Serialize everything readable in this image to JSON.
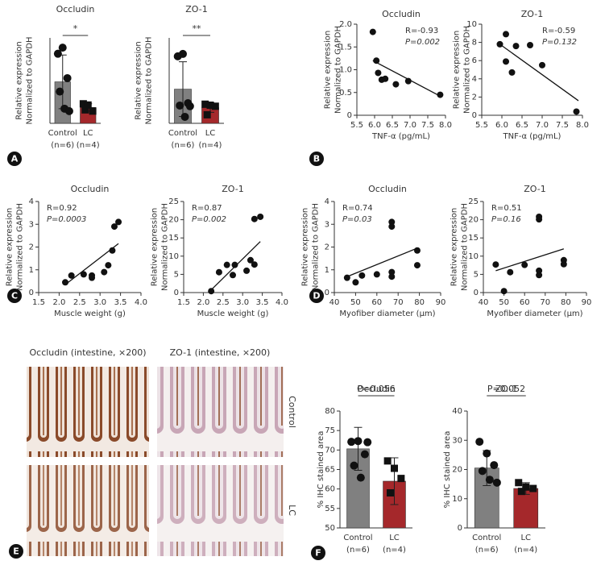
{
  "chart_data": [
    {
      "type": "bar",
      "title": "Occludin",
      "ylabel": [
        "Relative expression",
        "Normalized to GAPDH"
      ],
      "categories": [
        "Control",
        "LC"
      ],
      "group_sizes": [
        "(n=6)",
        "(n=4)"
      ],
      "colors": [
        "#808080",
        "#a5282b"
      ],
      "values": [
        1.7,
        0.65
      ],
      "errors": [
        1.1,
        0.15
      ],
      "points": [
        [
          2.85,
          3.1,
          1.85,
          1.3,
          0.6,
          0.5
        ],
        [
          0.8,
          0.75,
          0.5,
          0.55
        ]
      ],
      "ylim": [
        0,
        3.5
      ],
      "significance": "*"
    },
    {
      "type": "bar",
      "title": "ZO-1",
      "ylabel": [
        "Relative expression",
        "Normalized to GAPDH"
      ],
      "categories": [
        "Control",
        "LC"
      ],
      "group_sizes": [
        "(n=6)",
        "(n=4)"
      ],
      "colors": [
        "#808080",
        "#a5282b"
      ],
      "values": [
        10,
        4.6
      ],
      "errors": [
        8,
        1.4
      ],
      "points": [
        [
          19.6,
          20.3,
          5.9,
          5.2,
          1.9,
          5
        ],
        [
          5.6,
          5.3,
          5,
          2.5
        ]
      ],
      "ylim": [
        0,
        25
      ],
      "significance": "**"
    },
    {
      "type": "scatter",
      "title": "Occludin",
      "xlabel": "TNF-α (pg/mL)",
      "ylabel": [
        "Relative expression",
        "Normalized to GAPDH"
      ],
      "x": [
        5.95,
        6.05,
        6.1,
        6.2,
        6.3,
        6.6,
        6.95,
        7.85
      ],
      "y": [
        1.83,
        1.2,
        0.93,
        0.78,
        0.8,
        0.68,
        0.75,
        0.45
      ],
      "xlim": [
        5.5,
        8
      ],
      "xticks": [
        5.5,
        {
          "value": 6,
          "label": "6.0"
        },
        6.5,
        {
          "value": 7,
          "label": "7.0"
        },
        7.5,
        {
          "value": 8,
          "label": "8.0"
        }
      ],
      "ylim": [
        0,
        2
      ],
      "yticks": [
        0,
        0.5,
        {
          "value": 1,
          "label": "1.0"
        },
        1.5,
        {
          "value": 2,
          "label": "2.0"
        }
      ],
      "trend": {
        "x": [
          5.95,
          7.9
        ],
        "y": [
          1.2,
          0.4
        ]
      },
      "annotations": [
        "R=-0.93",
        "P=0.002"
      ]
    },
    {
      "type": "scatter",
      "title": "ZO-1",
      "xlabel": "TNF-α (pg/mL)",
      "ylabel": [
        "Relative expression",
        "Normalized to GAPDH"
      ],
      "x": [
        5.95,
        6.1,
        6.1,
        6.25,
        6.35,
        6.7,
        7,
        7.85
      ],
      "y": [
        7.8,
        8.9,
        5.9,
        4.7,
        7.6,
        7.7,
        5.5,
        0.4
      ],
      "xlim": [
        5.5,
        8
      ],
      "xticks": [
        5.5,
        {
          "value": 6,
          "label": "6.0"
        },
        6.5,
        {
          "value": 7,
          "label": "7.0"
        },
        7.5,
        {
          "value": 8,
          "label": "8.0"
        }
      ],
      "ylim": [
        0,
        10
      ],
      "yticks": [
        0,
        2,
        4,
        6,
        8,
        10
      ],
      "trend": {
        "x": [
          5.95,
          7.9
        ],
        "y": [
          7.8,
          1.6
        ]
      },
      "annotations": [
        "R=-0.59",
        "P=0.132"
      ]
    },
    {
      "type": "scatter",
      "title": "Occludin",
      "xlabel": "Muscle weight (g)",
      "ylabel": [
        "Relative expression",
        "Normalized to GAPDH"
      ],
      "x": [
        2.15,
        2.3,
        2.6,
        2.8,
        2.8,
        3.1,
        3.2,
        3.3,
        3.35,
        3.45
      ],
      "y": [
        0.45,
        0.75,
        0.8,
        0.75,
        0.65,
        0.9,
        1.2,
        1.85,
        2.9,
        3.1
      ],
      "xlim": [
        1.5,
        4
      ],
      "xticks": [
        1.5,
        {
          "value": 2,
          "label": "2.0"
        },
        2.5,
        {
          "value": 3,
          "label": "3.0"
        },
        3.5,
        {
          "value": 4,
          "label": "4.0"
        }
      ],
      "ylim": [
        0,
        4
      ],
      "yticks": [
        0,
        1,
        2,
        3,
        4
      ],
      "trend": {
        "x": [
          2.15,
          3.45
        ],
        "y": [
          0.35,
          2.15
        ]
      },
      "annotations": [
        "R=0.92",
        "P=0.0003"
      ]
    },
    {
      "type": "scatter",
      "title": "ZO-1",
      "xlabel": "Muscle weight (g)",
      "ylabel": [
        "Relative expression",
        "Normalized to GAPDH"
      ],
      "x": [
        2.2,
        2.4,
        2.6,
        2.75,
        2.8,
        3.1,
        3.2,
        3.3,
        3.3,
        3.45
      ],
      "y": [
        0.4,
        5.6,
        7.6,
        4.8,
        7.6,
        6,
        8.9,
        7.7,
        20.2,
        20.8
      ],
      "xlim": [
        1.5,
        4
      ],
      "xticks": [
        1.5,
        {
          "value": 2,
          "label": "2.0"
        },
        2.5,
        {
          "value": 3,
          "label": "3.0"
        },
        3.5,
        {
          "value": 4,
          "label": "4.0"
        }
      ],
      "ylim": [
        0,
        25
      ],
      "yticks": [
        0,
        5,
        10,
        15,
        20,
        25
      ],
      "trend": {
        "x": [
          2.15,
          3.45
        ],
        "y": [
          0.2,
          14
        ]
      },
      "annotations": [
        "R=0.87",
        "P=0.002"
      ]
    },
    {
      "type": "scatter",
      "title": "Occludin",
      "xlabel": "Myofiber diameter (μm)",
      "ylabel": [
        "Relative expression",
        "Normalized to GAPDH"
      ],
      "x": [
        46,
        50,
        53,
        60,
        67,
        67,
        67,
        67,
        79,
        79
      ],
      "y": [
        0.65,
        0.45,
        0.75,
        0.8,
        3.1,
        2.9,
        0.9,
        0.7,
        1.85,
        1.2
      ],
      "xlim": [
        40,
        90
      ],
      "xticks": [
        40,
        50,
        60,
        70,
        80,
        90
      ],
      "ylim": [
        0,
        4
      ],
      "yticks": [
        0,
        1,
        2,
        3,
        4
      ],
      "trend": {
        "x": [
          46,
          79
        ],
        "y": [
          0.7,
          1.95
        ]
      },
      "annotations": [
        "R=0.74",
        "P=0.03"
      ]
    },
    {
      "type": "scatter",
      "title": "ZO-1",
      "xlabel": "Myofiber diameter (μm)",
      "ylabel": [
        "Relative expression",
        "Normalized to GAPDH"
      ],
      "x": [
        46,
        50,
        53,
        60,
        67,
        67,
        67,
        67,
        79,
        79
      ],
      "y": [
        7.7,
        0.4,
        5.6,
        7.6,
        20.8,
        20.1,
        6,
        4.8,
        8.9,
        7.8
      ],
      "xlim": [
        40,
        90
      ],
      "xticks": [
        40,
        50,
        60,
        70,
        80,
        90
      ],
      "ylim": [
        0,
        25
      ],
      "yticks": [
        0,
        5,
        10,
        15,
        20,
        25
      ],
      "trend": {
        "x": [
          46,
          79
        ],
        "y": [
          6,
          12
        ]
      },
      "annotations": [
        "R=0.51",
        "P=0.16"
      ]
    },
    {
      "type": "bar",
      "title": "Occludin",
      "ylabel": [
        "% IHC stained area"
      ],
      "categories": [
        "Control",
        "LC"
      ],
      "group_sizes": [
        "(n=6)",
        "(n=4)"
      ],
      "colors": [
        "#808080",
        "#a5282b"
      ],
      "values": [
        70.3,
        62
      ],
      "errors": [
        5.5,
        6
      ],
      "points": [
        [
          72.1,
          72.3,
          68.9,
          66,
          62.9,
          72
        ],
        [
          67.2,
          65.3,
          62.7,
          59
        ]
      ],
      "ylim": [
        50,
        80
      ],
      "yticks": [
        50,
        55,
        60,
        65,
        70,
        75,
        80
      ],
      "significance": "P=0.056"
    },
    {
      "type": "bar",
      "title": "ZO-1",
      "ylabel": [
        "% IHC stained area"
      ],
      "categories": [
        "Control",
        "LC"
      ],
      "group_sizes": [
        "(n=6)",
        "(n=4)"
      ],
      "colors": [
        "#808080",
        "#a5282b"
      ],
      "values": [
        20.5,
        13.5
      ],
      "errors": [
        6,
        2
      ],
      "points": [
        [
          29.5,
          25.5,
          21.5,
          19.5,
          16.5,
          15.5
        ],
        [
          15.5,
          14,
          13.5,
          12.5
        ]
      ],
      "ylim": [
        0,
        40
      ],
      "yticks": [
        0,
        10,
        20,
        30,
        40
      ],
      "significance": "P=0.052"
    }
  ],
  "images": {
    "columns": [
      "Occludin (intestine, ×200)",
      "ZO-1 (intestine, ×200)"
    ],
    "rows": [
      "Control",
      "LC"
    ]
  },
  "panel_letters": [
    "A",
    "B",
    "C",
    "D",
    "E",
    "F"
  ]
}
